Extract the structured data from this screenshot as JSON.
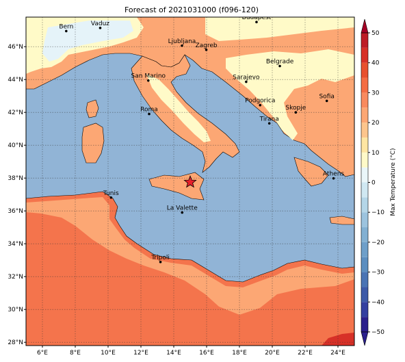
{
  "title": "Forecast of 2021031000 (f096-120)",
  "map": {
    "lon_range": [
      5,
      25
    ],
    "lat_range": [
      27.8,
      47.8
    ],
    "lon_ticks": [
      6,
      8,
      10,
      12,
      14,
      16,
      18,
      20,
      22,
      24
    ],
    "lat_ticks": [
      28,
      30,
      32,
      34,
      36,
      38,
      40,
      42,
      44,
      46
    ],
    "lon_tick_labels": [
      "6°E",
      "8°E",
      "10°E",
      "12°E",
      "14°E",
      "16°E",
      "18°E",
      "20°E",
      "22°E",
      "24°E"
    ],
    "lat_tick_labels": [
      "28°N",
      "30°N",
      "32°N",
      "34°N",
      "36°N",
      "38°N",
      "40°N",
      "42°N",
      "44°N",
      "46°N"
    ],
    "grid": true,
    "sea_color": "#91b4d6",
    "cities": [
      {
        "name": "Bern",
        "lon": 7.45,
        "lat": 46.95
      },
      {
        "name": "Vaduz",
        "lon": 9.52,
        "lat": 47.14
      },
      {
        "name": "Budapest",
        "lon": 19.04,
        "lat": 47.5
      },
      {
        "name": "Ljubljana",
        "lon": 14.5,
        "lat": 46.06
      },
      {
        "name": "Zagreb",
        "lon": 15.98,
        "lat": 45.81
      },
      {
        "name": "Belgrade",
        "lon": 20.46,
        "lat": 44.82
      },
      {
        "name": "San Marino",
        "lon": 12.45,
        "lat": 43.94
      },
      {
        "name": "Sarajevo",
        "lon": 18.41,
        "lat": 43.86
      },
      {
        "name": "Sofia",
        "lon": 23.32,
        "lat": 42.7
      },
      {
        "name": "Podgorica",
        "lon": 19.26,
        "lat": 42.44
      },
      {
        "name": "Skopje",
        "lon": 21.43,
        "lat": 42.0
      },
      {
        "name": "Roma",
        "lon": 12.5,
        "lat": 41.9
      },
      {
        "name": "Tirana",
        "lon": 19.82,
        "lat": 41.33
      },
      {
        "name": "Athens",
        "lon": 23.73,
        "lat": 37.98
      },
      {
        "name": "Tunis",
        "lon": 10.18,
        "lat": 36.81
      },
      {
        "name": "La Valette",
        "lon": 14.51,
        "lat": 35.9
      },
      {
        "name": "Tripoli",
        "lon": 13.19,
        "lat": 32.89
      }
    ],
    "marker": {
      "symbol": "star",
      "lon": 15.0,
      "lat": 37.75,
      "color": "#e8202a"
    }
  },
  "colorbar": {
    "label": "Max Temperature (°C)",
    "ticks": [
      -50,
      -40,
      -30,
      -20,
      -10,
      0,
      10,
      20,
      30,
      40,
      50
    ],
    "tick_labels": [
      "−50",
      "−40",
      "−30",
      "−20",
      "−10",
      "0",
      "10",
      "20",
      "30",
      "40",
      "50"
    ],
    "levels": [
      -50,
      -45,
      -40,
      -35,
      -30,
      -25,
      -20,
      -15,
      -10,
      -5,
      0,
      5,
      10,
      15,
      20,
      25,
      30,
      35,
      40,
      45,
      50
    ],
    "colors": [
      "#2a1f8c",
      "#333fa0",
      "#3d5aa8",
      "#4a74b4",
      "#5b8ec0",
      "#6e9fc9",
      "#82b0d2",
      "#9cc3de",
      "#b4d6e8",
      "#d0e8f2",
      "#eaf6f9",
      "#fffac8",
      "#fee6a3",
      "#fdc58c",
      "#fca774",
      "#f98a5e",
      "#f46d43",
      "#e8502e",
      "#d73027",
      "#bd1c26",
      "#a50026"
    ]
  }
}
